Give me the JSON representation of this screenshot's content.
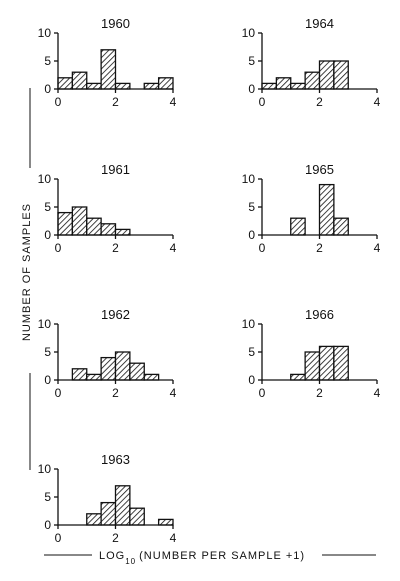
{
  "chart_data": {
    "type": "bar",
    "ylabel": "NUMBER OF SAMPLES",
    "xlabel_prefix": "LOG",
    "xlabel_sub": "10",
    "xlabel_suffix": "(NUMBER PER SAMPLE +1)",
    "xlim": [
      0,
      4
    ],
    "ylim": [
      0,
      10
    ],
    "xticks": [
      "0",
      "2",
      "4"
    ],
    "yticks": [
      "0",
      "5",
      "10"
    ],
    "bin_width": 0.5,
    "panels": [
      {
        "title": "1960",
        "bins": [
          0,
          0.5,
          1,
          1.5,
          2,
          3,
          3.5
        ],
        "values": [
          2,
          3,
          1,
          7,
          1,
          1,
          2
        ]
      },
      {
        "title": "1961",
        "bins": [
          0,
          0.5,
          1,
          1.5,
          2
        ],
        "values": [
          4,
          5,
          3,
          2,
          1
        ]
      },
      {
        "title": "1962",
        "bins": [
          0.5,
          1,
          1.5,
          2,
          2.5,
          3
        ],
        "values": [
          2,
          1,
          4,
          5,
          3,
          1
        ]
      },
      {
        "title": "1963",
        "bins": [
          1,
          1.5,
          2,
          2.5,
          3.5
        ],
        "values": [
          2,
          4,
          7,
          3,
          1
        ]
      },
      {
        "title": "1964",
        "bins": [
          0,
          0.5,
          1,
          1.5,
          2,
          2.5
        ],
        "values": [
          1,
          2,
          1,
          3,
          5,
          5
        ]
      },
      {
        "title": "1965",
        "bins": [
          1,
          2,
          2.5
        ],
        "values": [
          3,
          9,
          3
        ]
      },
      {
        "title": "1966",
        "bins": [
          1,
          1.5,
          2,
          2.5
        ],
        "values": [
          1,
          5,
          6,
          6
        ]
      }
    ]
  }
}
